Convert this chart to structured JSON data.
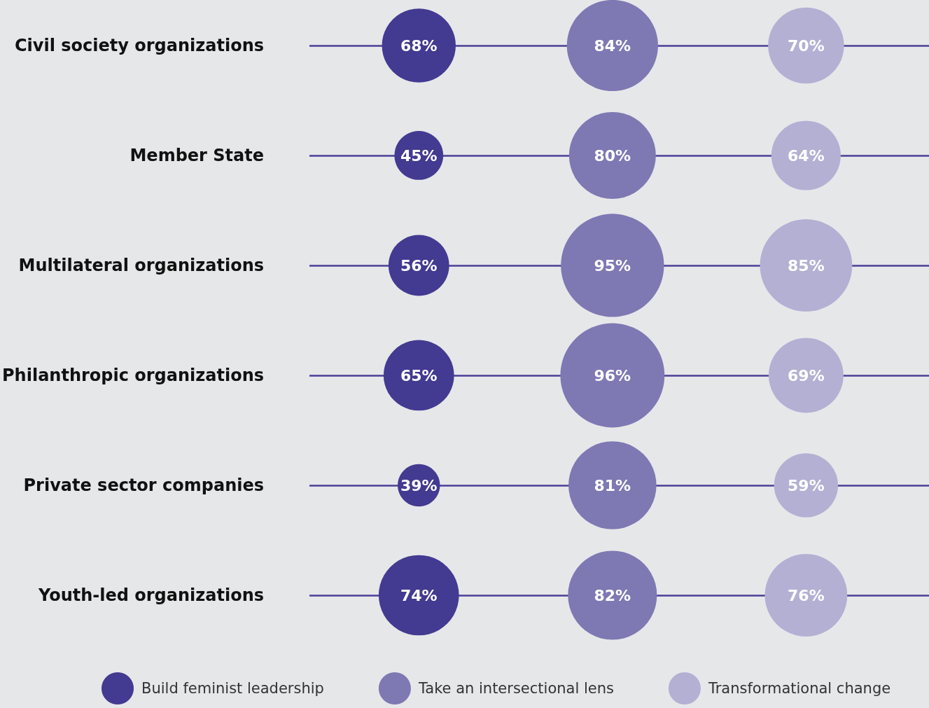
{
  "chart_data": {
    "type": "other",
    "categories": [
      "Civil society organizations",
      "Member State",
      "Multilateral organizations",
      "Philanthropic organizations",
      "Private sector companies",
      "Youth-led organizations"
    ],
    "series": [
      {
        "name": "Build feminist leadership",
        "color": "#433a91",
        "values": [
          68,
          45,
          56,
          65,
          39,
          74
        ],
        "value_labels": [
          "68%",
          "45%",
          "56%",
          "65%",
          "39%",
          "74%"
        ]
      },
      {
        "name": "Take an intersectional lens",
        "color": "#7e78b3",
        "values": [
          84,
          80,
          95,
          96,
          81,
          82
        ],
        "value_labels": [
          "84%",
          "80%",
          "95%",
          "96%",
          "81%",
          "82%"
        ]
      },
      {
        "name": "Transformational change",
        "color": "#b3b0d4",
        "values": [
          70,
          64,
          85,
          69,
          59,
          76
        ],
        "value_labels": [
          "70%",
          "64%",
          "85%",
          "69%",
          "59%",
          "76%"
        ]
      }
    ],
    "legend": "bottom"
  }
}
